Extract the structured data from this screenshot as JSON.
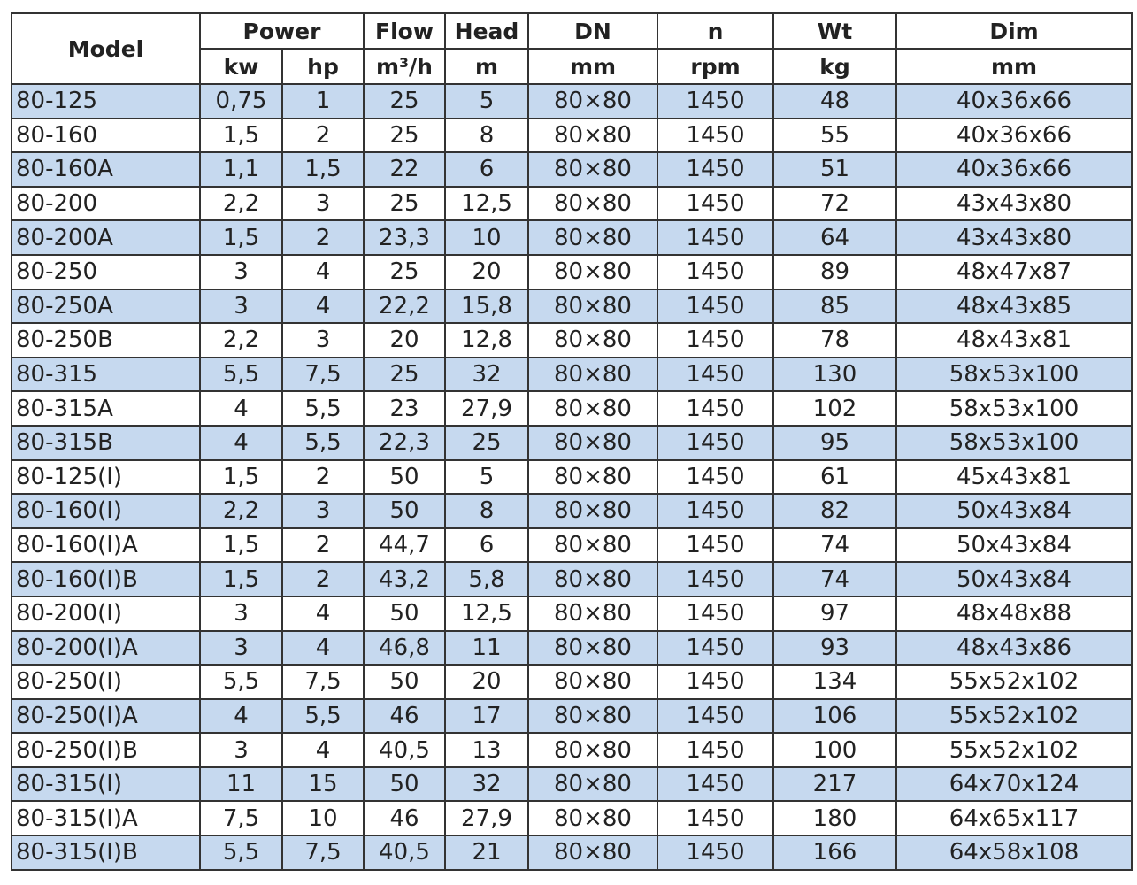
{
  "header": {
    "model": "Model",
    "power": "Power",
    "flow": "Flow",
    "head": "Head",
    "dn": "DN",
    "n": "n",
    "wt": "Wt",
    "dim": "Dim",
    "units": {
      "kw": "kw",
      "hp": "hp",
      "flow": "m³/h",
      "head": "m",
      "dn": "mm",
      "n": "rpm",
      "wt": "kg",
      "dim": "mm"
    }
  },
  "row_shade_color": "#c6d9ef",
  "rows": [
    [
      "80-125",
      "0,75",
      "1",
      "25",
      "5",
      "80×80",
      "1450",
      "48",
      "40x36x66"
    ],
    [
      "80-160",
      "1,5",
      "2",
      "25",
      "8",
      "80×80",
      "1450",
      "55",
      "40x36x66"
    ],
    [
      "80-160A",
      "1,1",
      "1,5",
      "22",
      "6",
      "80×80",
      "1450",
      "51",
      "40x36x66"
    ],
    [
      "80-200",
      "2,2",
      "3",
      "25",
      "12,5",
      "80×80",
      "1450",
      "72",
      "43x43x80"
    ],
    [
      "80-200A",
      "1,5",
      "2",
      "23,3",
      "10",
      "80×80",
      "1450",
      "64",
      "43x43x80"
    ],
    [
      "80-250",
      "3",
      "4",
      "25",
      "20",
      "80×80",
      "1450",
      "89",
      "48x47x87"
    ],
    [
      "80-250A",
      "3",
      "4",
      "22,2",
      "15,8",
      "80×80",
      "1450",
      "85",
      "48x43x85"
    ],
    [
      "80-250B",
      "2,2",
      "3",
      "20",
      "12,8",
      "80×80",
      "1450",
      "78",
      "48x43x81"
    ],
    [
      "80-315",
      "5,5",
      "7,5",
      "25",
      "32",
      "80×80",
      "1450",
      "130",
      "58x53x100"
    ],
    [
      "80-315A",
      "4",
      "5,5",
      "23",
      "27,9",
      "80×80",
      "1450",
      "102",
      "58x53x100"
    ],
    [
      "80-315B",
      "4",
      "5,5",
      "22,3",
      "25",
      "80×80",
      "1450",
      "95",
      "58x53x100"
    ],
    [
      "80-125(I)",
      "1,5",
      "2",
      "50",
      "5",
      "80×80",
      "1450",
      "61",
      "45x43x81"
    ],
    [
      "80-160(I)",
      "2,2",
      "3",
      "50",
      "8",
      "80×80",
      "1450",
      "82",
      "50x43x84"
    ],
    [
      "80-160(I)A",
      "1,5",
      "2",
      "44,7",
      "6",
      "80×80",
      "1450",
      "74",
      "50x43x84"
    ],
    [
      "80-160(I)B",
      "1,5",
      "2",
      "43,2",
      "5,8",
      "80×80",
      "1450",
      "74",
      "50x43x84"
    ],
    [
      "80-200(I)",
      "3",
      "4",
      "50",
      "12,5",
      "80×80",
      "1450",
      "97",
      "48x48x88"
    ],
    [
      "80-200(I)A",
      "3",
      "4",
      "46,8",
      "11",
      "80×80",
      "1450",
      "93",
      "48x43x86"
    ],
    [
      "80-250(I)",
      "5,5",
      "7,5",
      "50",
      "20",
      "80×80",
      "1450",
      "134",
      "55x52x102"
    ],
    [
      "80-250(I)A",
      "4",
      "5,5",
      "46",
      "17",
      "80×80",
      "1450",
      "106",
      "55x52x102"
    ],
    [
      "80-250(I)B",
      "3",
      "4",
      "40,5",
      "13",
      "80×80",
      "1450",
      "100",
      "55x52x102"
    ],
    [
      "80-315(I)",
      "11",
      "15",
      "50",
      "32",
      "80×80",
      "1450",
      "217",
      "64x70x124"
    ],
    [
      "80-315(I)A",
      "7,5",
      "10",
      "46",
      "27,9",
      "80×80",
      "1450",
      "180",
      "64x65x117"
    ],
    [
      "80-315(I)B",
      "5,5",
      "7,5",
      "40,5",
      "21",
      "80×80",
      "1450",
      "166",
      "64x58x108"
    ]
  ]
}
